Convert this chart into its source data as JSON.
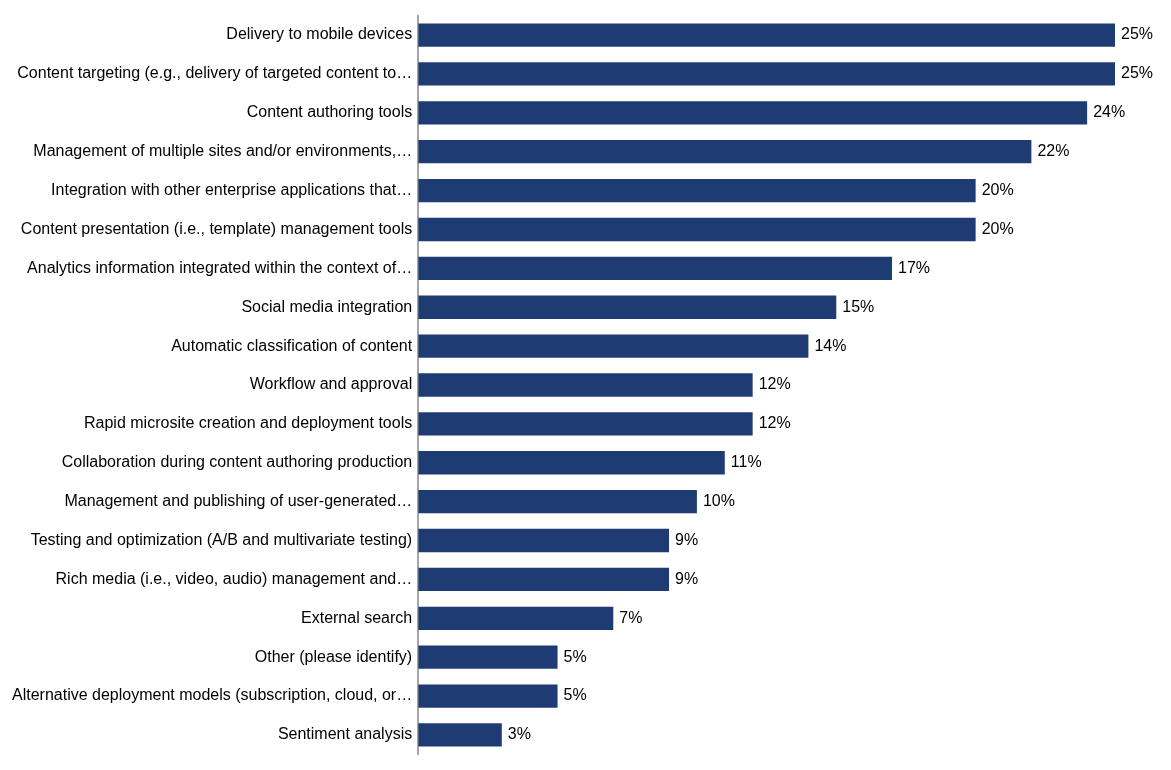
{
  "chart_data": {
    "type": "bar",
    "orientation": "horizontal",
    "categories": [
      "Delivery to mobile devices",
      "Content targeting (e.g., delivery of targeted content to…",
      "Content authoring tools",
      "Management of multiple sites and/or environments,…",
      "Integration with other enterprise applications that…",
      "Content presentation (i.e., template) management tools",
      "Analytics information integrated within the context of…",
      "Social media integration",
      "Automatic classification of content",
      "Workflow and approval",
      "Rapid microsite creation and deployment tools",
      "Collaboration during content authoring production",
      "Management and publishing of user-generated…",
      "Testing and optimization (A/B and multivariate testing)",
      "Rich media (i.e., video, audio) management and…",
      "External search",
      "Other (please identify)",
      "Alternative deployment models (subscription, cloud, or…",
      "Sentiment analysis"
    ],
    "values": [
      25,
      25,
      24,
      22,
      20,
      20,
      17,
      15,
      14,
      12,
      12,
      11,
      10,
      9,
      9,
      7,
      5,
      5,
      3
    ],
    "value_labels": [
      "25%",
      "25%",
      "24%",
      "22%",
      "20%",
      "20%",
      "17%",
      "15%",
      "14%",
      "12%",
      "12%",
      "11%",
      "10%",
      "9%",
      "9%",
      "7%",
      "5%",
      "5%",
      "3%"
    ],
    "color": "#1f3b73",
    "grid": false,
    "legend": false,
    "tick_labels": "y"
  }
}
